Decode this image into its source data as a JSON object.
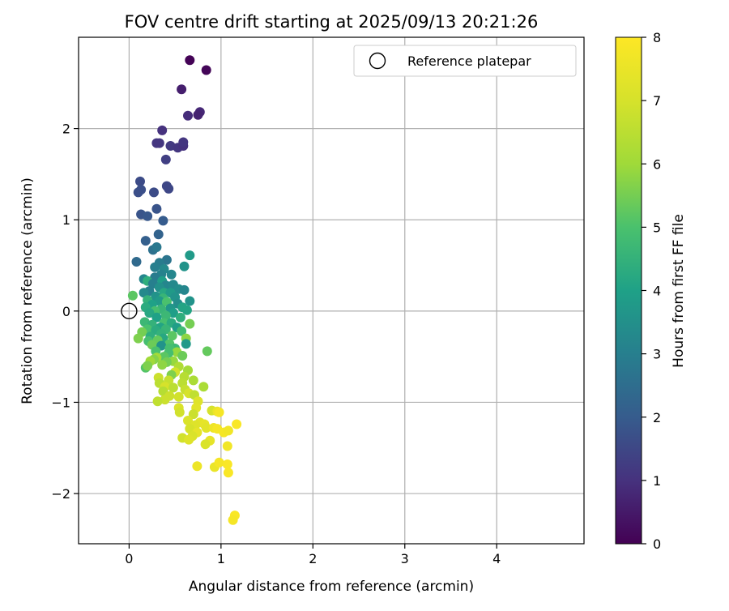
{
  "chart_data": {
    "type": "scatter",
    "title": "FOV centre drift starting at 2025/09/13 20:21:26",
    "xlabel": "Angular distance from reference (arcmin)",
    "ylabel": "Rotation from reference (arcmin)",
    "xlim": [
      -0.55,
      4.95
    ],
    "ylim": [
      -2.55,
      3.0
    ],
    "x_ticks": [
      0,
      1,
      2,
      3,
      4
    ],
    "y_ticks": [
      -2,
      -1,
      0,
      1,
      2
    ],
    "x_tick_labels": [
      "0",
      "1",
      "2",
      "3",
      "4"
    ],
    "y_tick_labels": [
      "−2",
      "−1",
      "0",
      "1",
      "2"
    ],
    "grid": true,
    "legend": {
      "position": "top-right",
      "entries": [
        "Reference platepar"
      ]
    },
    "reference_point": {
      "x": 0,
      "y": 0,
      "label": "Reference platepar"
    },
    "colorbar": {
      "label": "Hours from first FF file",
      "min": 0,
      "max": 8,
      "ticks": [
        0,
        1,
        2,
        3,
        4,
        5,
        6,
        7,
        8
      ],
      "tick_labels": [
        "0",
        "1",
        "2",
        "3",
        "4",
        "5",
        "6",
        "7",
        "8"
      ],
      "colormap": "viridis"
    },
    "points": [
      [
        0.66,
        2.75,
        0.05
      ],
      [
        0.84,
        2.64,
        0.1
      ],
      [
        0.57,
        2.43,
        0.6
      ],
      [
        0.77,
        2.18,
        0.8
      ],
      [
        0.75,
        2.15,
        0.7
      ],
      [
        0.64,
        2.14,
        0.9
      ],
      [
        0.36,
        1.98,
        1.0
      ],
      [
        0.3,
        1.84,
        1.1
      ],
      [
        0.33,
        1.84,
        1.1
      ],
      [
        0.45,
        1.81,
        1.2
      ],
      [
        0.53,
        1.79,
        1.1
      ],
      [
        0.59,
        1.81,
        1.0
      ],
      [
        0.59,
        1.85,
        1.1
      ],
      [
        0.4,
        1.66,
        1.3
      ],
      [
        0.12,
        1.42,
        1.6
      ],
      [
        0.13,
        1.33,
        1.7
      ],
      [
        0.1,
        1.3,
        1.7
      ],
      [
        0.41,
        1.37,
        1.5
      ],
      [
        0.43,
        1.34,
        1.5
      ],
      [
        0.27,
        1.3,
        1.6
      ],
      [
        0.3,
        1.12,
        1.8
      ],
      [
        0.13,
        1.06,
        1.8
      ],
      [
        0.2,
        1.04,
        1.9
      ],
      [
        0.37,
        0.99,
        2.0
      ],
      [
        0.32,
        0.84,
        2.2
      ],
      [
        0.18,
        0.77,
        2.1
      ],
      [
        0.26,
        0.67,
        2.6
      ],
      [
        0.3,
        0.7,
        2.8
      ],
      [
        0.08,
        0.54,
        2.4
      ],
      [
        0.66,
        0.61,
        3.8
      ],
      [
        0.41,
        0.56,
        2.7
      ],
      [
        0.33,
        0.53,
        2.9
      ],
      [
        0.28,
        0.48,
        3.0
      ],
      [
        0.38,
        0.46,
        3.3
      ],
      [
        0.6,
        0.49,
        3.6
      ],
      [
        0.35,
        0.4,
        3.1
      ],
      [
        0.46,
        0.4,
        3.2
      ],
      [
        0.28,
        0.37,
        2.9
      ],
      [
        0.16,
        0.35,
        3.2
      ],
      [
        0.2,
        0.33,
        4.4
      ],
      [
        0.36,
        0.33,
        3.9
      ],
      [
        0.26,
        0.3,
        3.0
      ],
      [
        0.4,
        0.28,
        3.2
      ],
      [
        0.48,
        0.29,
        3.3
      ],
      [
        0.33,
        0.26,
        3.5
      ],
      [
        0.54,
        0.24,
        3.4
      ],
      [
        0.6,
        0.23,
        3.2
      ],
      [
        0.22,
        0.22,
        3.0
      ],
      [
        0.38,
        0.2,
        4.2
      ],
      [
        0.45,
        0.2,
        3.8
      ],
      [
        0.16,
        0.2,
        3.3
      ],
      [
        0.04,
        0.17,
        5.2
      ],
      [
        0.29,
        0.16,
        3.6
      ],
      [
        0.37,
        0.14,
        4.6
      ],
      [
        0.5,
        0.15,
        3.6
      ],
      [
        0.2,
        0.12,
        4.5
      ],
      [
        0.33,
        0.11,
        3.8
      ],
      [
        0.41,
        0.1,
        5.0
      ],
      [
        0.66,
        0.11,
        3.6
      ],
      [
        0.53,
        0.08,
        3.4
      ],
      [
        0.25,
        0.07,
        4.0
      ],
      [
        0.58,
        0.04,
        4.1
      ],
      [
        0.18,
        0.04,
        4.3
      ],
      [
        0.45,
        0.03,
        3.7
      ],
      [
        0.35,
        0.02,
        4.6
      ],
      [
        0.63,
        0.01,
        4.1
      ],
      [
        0.28,
        0.0,
        4.9
      ],
      [
        0.22,
        -0.02,
        4.2
      ],
      [
        0.48,
        -0.02,
        3.9
      ],
      [
        0.4,
        -0.05,
        4.7
      ],
      [
        0.3,
        -0.07,
        4.0
      ],
      [
        0.56,
        -0.07,
        4.4
      ],
      [
        0.17,
        -0.12,
        4.7
      ],
      [
        0.38,
        -0.13,
        4.9
      ],
      [
        0.46,
        -0.13,
        4.3
      ],
      [
        0.66,
        -0.14,
        5.5
      ],
      [
        0.25,
        -0.15,
        4.5
      ],
      [
        0.34,
        -0.18,
        4.1
      ],
      [
        0.52,
        -0.18,
        3.9
      ],
      [
        0.2,
        -0.2,
        5.0
      ],
      [
        0.4,
        -0.2,
        4.6
      ],
      [
        0.29,
        -0.21,
        4.3
      ],
      [
        0.57,
        -0.22,
        4.8
      ],
      [
        0.14,
        -0.23,
        5.5
      ],
      [
        0.35,
        -0.25,
        4.5
      ],
      [
        0.47,
        -0.27,
        5.2
      ],
      [
        0.23,
        -0.28,
        4.4
      ],
      [
        0.62,
        -0.3,
        5.8
      ],
      [
        0.1,
        -0.3,
        5.6
      ],
      [
        0.37,
        -0.3,
        4.2
      ],
      [
        0.31,
        -0.32,
        5.3
      ],
      [
        0.21,
        -0.33,
        4.9
      ],
      [
        0.62,
        -0.36,
        3.8
      ],
      [
        0.44,
        -0.36,
        5.1
      ],
      [
        0.25,
        -0.37,
        5.4
      ],
      [
        0.35,
        -0.38,
        3.6
      ],
      [
        0.5,
        -0.41,
        4.7
      ],
      [
        0.44,
        -0.41,
        4.9
      ],
      [
        0.29,
        -0.44,
        5.0
      ],
      [
        0.85,
        -0.44,
        5.3
      ],
      [
        0.52,
        -0.45,
        5.9
      ],
      [
        0.43,
        -0.46,
        4.9
      ],
      [
        0.58,
        -0.49,
        5.4
      ],
      [
        0.38,
        -0.5,
        5.2
      ],
      [
        0.3,
        -0.51,
        6.1
      ],
      [
        0.27,
        -0.53,
        5.7
      ],
      [
        0.23,
        -0.55,
        6.0
      ],
      [
        0.48,
        -0.55,
        5.9
      ],
      [
        0.41,
        -0.56,
        5.5
      ],
      [
        0.36,
        -0.59,
        5.8
      ],
      [
        0.18,
        -0.62,
        5.1
      ],
      [
        0.2,
        -0.6,
        5.6
      ],
      [
        0.54,
        -0.61,
        6.3
      ],
      [
        0.64,
        -0.65,
        6.1
      ],
      [
        0.5,
        -0.67,
        6.9
      ],
      [
        0.46,
        -0.7,
        5.6
      ],
      [
        0.32,
        -0.73,
        6.8
      ],
      [
        0.6,
        -0.72,
        6.4
      ],
      [
        0.43,
        -0.76,
        6.7
      ],
      [
        0.7,
        -0.76,
        6.2
      ],
      [
        0.33,
        -0.79,
        6.5
      ],
      [
        0.58,
        -0.79,
        6.5
      ],
      [
        0.39,
        -0.83,
        7.0
      ],
      [
        0.81,
        -0.83,
        6.2
      ],
      [
        0.48,
        -0.84,
        6.5
      ],
      [
        0.61,
        -0.86,
        6.7
      ],
      [
        0.37,
        -0.88,
        6.4
      ],
      [
        0.65,
        -0.9,
        7.0
      ],
      [
        0.71,
        -0.92,
        6.6
      ],
      [
        0.44,
        -0.93,
        6.8
      ],
      [
        0.54,
        -0.94,
        6.9
      ],
      [
        0.39,
        -0.97,
        6.8
      ],
      [
        0.31,
        -0.99,
        6.6
      ],
      [
        0.75,
        -0.99,
        7.2
      ],
      [
        0.54,
        -1.06,
        7.1
      ],
      [
        0.73,
        -1.06,
        7.3
      ],
      [
        0.9,
        -1.09,
        7.0
      ],
      [
        0.96,
        -1.1,
        7.5
      ],
      [
        0.98,
        -1.11,
        7.8
      ],
      [
        0.7,
        -1.13,
        6.8
      ],
      [
        0.55,
        -1.11,
        6.9
      ],
      [
        0.64,
        -1.2,
        7.1
      ],
      [
        0.77,
        -1.22,
        7.3
      ],
      [
        0.82,
        -1.24,
        7.4
      ],
      [
        0.72,
        -1.25,
        7.2
      ],
      [
        0.66,
        -1.29,
        7.0
      ],
      [
        0.84,
        -1.28,
        7.3
      ],
      [
        0.92,
        -1.28,
        7.6
      ],
      [
        0.96,
        -1.29,
        7.8
      ],
      [
        1.17,
        -1.24,
        7.9
      ],
      [
        1.03,
        -1.33,
        7.8
      ],
      [
        1.08,
        -1.31,
        7.7
      ],
      [
        0.74,
        -1.33,
        7.4
      ],
      [
        0.69,
        -1.37,
        7.1
      ],
      [
        0.58,
        -1.39,
        6.9
      ],
      [
        0.65,
        -1.41,
        7.2
      ],
      [
        0.88,
        -1.42,
        7.4
      ],
      [
        0.83,
        -1.46,
        7.1
      ],
      [
        1.07,
        -1.48,
        7.7
      ],
      [
        0.74,
        -1.7,
        7.6
      ],
      [
        0.93,
        -1.71,
        7.5
      ],
      [
        0.98,
        -1.66,
        7.8
      ],
      [
        1.07,
        -1.68,
        7.9
      ],
      [
        1.08,
        -1.77,
        7.9
      ],
      [
        1.15,
        -2.24,
        7.9
      ],
      [
        1.13,
        -2.29,
        7.8
      ]
    ]
  }
}
